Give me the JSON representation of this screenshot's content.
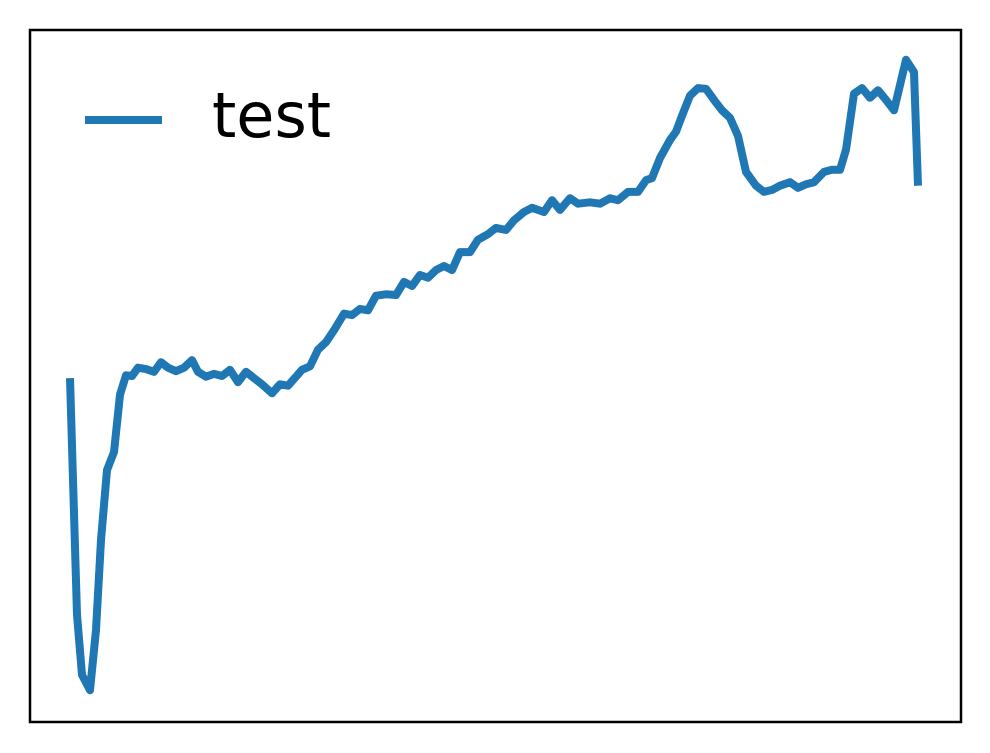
{
  "chart_data": {
    "type": "line",
    "legend": "upper left",
    "xlim": [
      -40,
      891
    ],
    "ylim": [
      0,
      100
    ],
    "x": [
      0,
      7,
      12,
      20,
      26,
      31,
      37,
      44,
      50,
      56,
      62,
      68,
      76,
      84,
      91,
      98,
      106,
      114,
      122,
      128,
      136,
      144,
      152,
      160,
      168,
      176,
      184,
      192,
      202,
      210,
      218,
      226,
      232,
      240,
      248,
      256,
      264,
      274,
      282,
      290,
      298,
      306,
      316,
      326,
      334,
      342,
      350,
      358,
      366,
      374,
      382,
      390,
      400,
      408,
      418,
      426,
      436,
      444,
      454,
      462,
      474,
      482,
      490,
      500,
      508,
      520,
      530,
      540,
      548,
      558,
      568,
      576,
      582,
      590,
      600,
      606,
      612,
      620,
      628,
      636,
      644,
      652,
      660,
      668,
      676,
      686,
      694,
      702,
      710,
      720,
      728,
      736,
      744,
      754,
      762,
      770,
      776,
      784,
      792,
      800,
      808,
      816,
      824,
      836,
      844,
      848
    ],
    "series": [
      {
        "name": "test",
        "color": "#1f77b4",
        "values": [
          49.7,
          15.5,
          6.8,
          4.6,
          13.3,
          26.3,
          36.4,
          39.0,
          47.3,
          50.1,
          50.0,
          51.2,
          51.0,
          50.6,
          52.0,
          51.2,
          50.7,
          51.2,
          52.3,
          50.6,
          49.9,
          50.3,
          50.0,
          50.9,
          49.1,
          50.6,
          49.7,
          48.8,
          47.5,
          48.8,
          48.6,
          49.9,
          50.9,
          51.4,
          53.8,
          54.9,
          56.6,
          59.0,
          58.8,
          59.7,
          59.5,
          61.6,
          61.8,
          61.7,
          63.6,
          63.0,
          64.6,
          64.2,
          65.3,
          65.9,
          65.3,
          67.9,
          67.9,
          69.7,
          70.5,
          71.4,
          71.1,
          72.5,
          73.7,
          74.3,
          73.7,
          75.4,
          74.0,
          75.7,
          74.9,
          75.1,
          74.9,
          75.7,
          75.4,
          76.6,
          76.6,
          78.3,
          78.6,
          81.5,
          84.1,
          85.3,
          87.6,
          90.5,
          91.6,
          91.5,
          89.9,
          88.4,
          87.3,
          84.7,
          79.5,
          77.5,
          76.6,
          76.9,
          77.5,
          78.0,
          77.2,
          77.7,
          78.0,
          79.5,
          79.8,
          79.8,
          82.7,
          90.8,
          91.6,
          90.2,
          91.3,
          89.9,
          88.4,
          95.7,
          93.9,
          77.5
        ]
      }
    ]
  }
}
